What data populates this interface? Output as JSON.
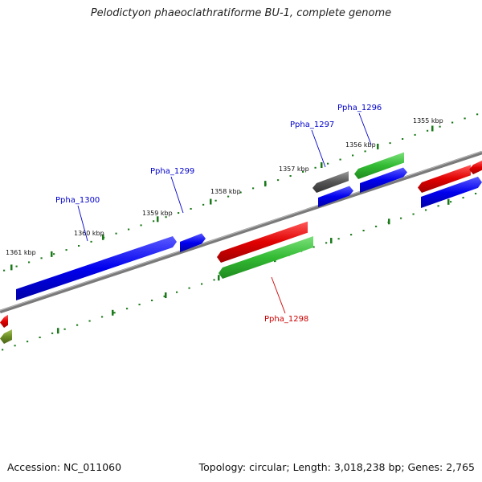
{
  "title": "Pelodictyon phaeoclathratiforme BU-1, complete genome",
  "footer": {
    "accession": "Accession: NC_011060",
    "summary": "Topology: circular; Length: 3,018,238 bp; Genes: 2,765"
  },
  "colors": {
    "backbone": "#808080",
    "forward_gene": "#e00000",
    "forward_rna": "#33bb33",
    "reverse_gene": "#0000ee",
    "pseudo": "#555555",
    "other": "#6b8e23",
    "tick": "#1a7a1a",
    "label_blue": "#0000cc",
    "label_red": "#cc0000"
  },
  "ticks": [
    {
      "label": "1355 kbp"
    },
    {
      "label": "1356 kbp"
    },
    {
      "label": "1357 kbp"
    },
    {
      "label": "1358 kbp"
    },
    {
      "label": "1359 kbp"
    },
    {
      "label": "1360 kbp"
    },
    {
      "label": "1361 kbp"
    }
  ],
  "gene_labels": [
    {
      "name": "Ppha_1296",
      "strand": "reverse"
    },
    {
      "name": "Ppha_1297",
      "strand": "reverse"
    },
    {
      "name": "Ppha_1298",
      "strand": "forward"
    },
    {
      "name": "Ppha_1299",
      "strand": "reverse"
    },
    {
      "name": "Ppha_1300",
      "strand": "reverse"
    }
  ]
}
